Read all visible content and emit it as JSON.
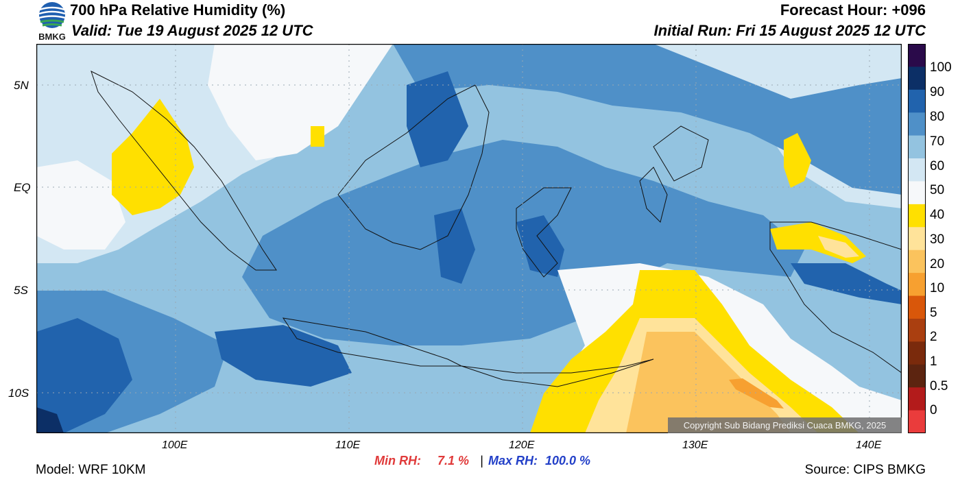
{
  "header": {
    "title": "700 hPa Relative Humidity (%)",
    "valid": "Valid: Tue 19 August 2025 12 UTC",
    "forecast_hour": "Forecast Hour: +096",
    "initial_run": "Initial Run: Fri 15 August 2025 12 UTC"
  },
  "logo": {
    "text": "BMKG"
  },
  "axes": {
    "lat_labels": [
      "5N",
      "EQ",
      "5S",
      "10S"
    ],
    "lon_labels": [
      "100E",
      "110E",
      "120E",
      "130E",
      "140E"
    ]
  },
  "colorbar": {
    "labels": [
      "100",
      "90",
      "80",
      "70",
      "60",
      "50",
      "40",
      "30",
      "20",
      "10",
      "5",
      "2",
      "1",
      "0.5",
      "0"
    ],
    "colors": [
      "#2a0a4a",
      "#0c2f66",
      "#2163ad",
      "#4f90c8",
      "#93c3e0",
      "#d3e7f3",
      "#f6f8fa",
      "#ffe000",
      "#ffe39a",
      "#fbc35d",
      "#f7a030",
      "#d9570a",
      "#aa3f10",
      "#7a2a0c",
      "#5c2410",
      "#b31b1b",
      "#ea3c3c"
    ]
  },
  "stats": {
    "min_label": "Min RH:",
    "min_value": "7.1 %",
    "separator": "|",
    "max_label": "Max RH:",
    "max_value": "100.0 %"
  },
  "footer": {
    "model": "Model: WRF 10KM",
    "source": "Source: CIPS BMKG",
    "copyright": "Copyright Sub Bidang Prediksi Cuaca BMKG, 2025"
  }
}
